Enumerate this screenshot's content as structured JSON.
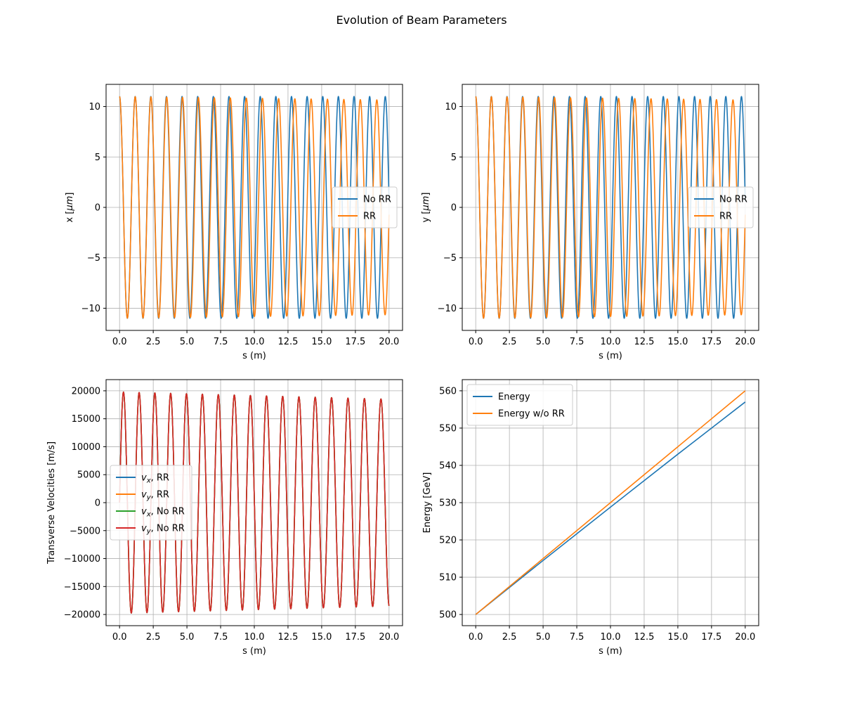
{
  "figure": {
    "title": "Evolution of Beam Parameters"
  },
  "chart_data": [
    {
      "type": "line",
      "xlabel": "s (m)",
      "ylabel": "x [μm]",
      "ylabel_main": "x [",
      "ylabel_unit_sym": "μ",
      "ylabel_unit_rest": "m",
      "ylabel_close": "]",
      "xlim": [
        -1.0,
        21.0
      ],
      "ylim": [
        -12.2,
        12.2
      ],
      "xticks": [
        0.0,
        2.5,
        5.0,
        7.5,
        10.0,
        12.5,
        15.0,
        17.5,
        20.0
      ],
      "xtick_labels": [
        "0.0",
        "2.5",
        "5.0",
        "7.5",
        "10.0",
        "12.5",
        "15.0",
        "17.5",
        "20.0"
      ],
      "yticks": [
        10,
        5,
        0,
        -5,
        -10
      ],
      "ytick_labels": [
        "10",
        "5",
        "0",
        "−5",
        "−10"
      ],
      "grid": true,
      "legend_position": "center-right",
      "series": [
        {
          "name": "No RR",
          "color": "#1f77b4",
          "model": {
            "kind": "osc",
            "amplitude": 11.0,
            "amp_decay": 0.0,
            "period": 1.16,
            "period_drift": 0.0,
            "phase": 0.0,
            "offset": 0.0
          }
        },
        {
          "name": "RR",
          "color": "#ff7f0e",
          "model": {
            "kind": "osc",
            "amplitude": 11.0,
            "amp_decay": 0.35,
            "period": 1.16,
            "period_drift": 0.0015,
            "phase": 0.0,
            "offset": 0.0
          }
        }
      ]
    },
    {
      "type": "line",
      "xlabel": "s (m)",
      "ylabel": "y [μm]",
      "ylabel_main": "y [",
      "ylabel_unit_sym": "μ",
      "ylabel_unit_rest": "m",
      "ylabel_close": "]",
      "xlim": [
        -1.0,
        21.0
      ],
      "ylim": [
        -12.2,
        12.2
      ],
      "xticks": [
        0.0,
        2.5,
        5.0,
        7.5,
        10.0,
        12.5,
        15.0,
        17.5,
        20.0
      ],
      "xtick_labels": [
        "0.0",
        "2.5",
        "5.0",
        "7.5",
        "10.0",
        "12.5",
        "15.0",
        "17.5",
        "20.0"
      ],
      "yticks": [
        10,
        5,
        0,
        -5,
        -10
      ],
      "ytick_labels": [
        "10",
        "5",
        "0",
        "−5",
        "−10"
      ],
      "grid": true,
      "legend_position": "center-right",
      "series": [
        {
          "name": "No RR",
          "color": "#1f77b4",
          "model": {
            "kind": "osc",
            "amplitude": 11.0,
            "amp_decay": 0.0,
            "period": 1.16,
            "period_drift": 0.0,
            "phase": 0.0,
            "offset": 0.0
          }
        },
        {
          "name": "RR",
          "color": "#ff7f0e",
          "model": {
            "kind": "osc",
            "amplitude": 11.0,
            "amp_decay": 0.35,
            "period": 1.16,
            "period_drift": 0.0015,
            "phase": 0.0,
            "offset": 0.0
          }
        }
      ]
    },
    {
      "type": "line",
      "xlabel": "s (m)",
      "ylabel": "Transverse Velocities [m/s]",
      "xlim": [
        -1.0,
        21.0
      ],
      "ylim": [
        -22000,
        22000
      ],
      "xticks": [
        0.0,
        2.5,
        5.0,
        7.5,
        10.0,
        12.5,
        15.0,
        17.5,
        20.0
      ],
      "xtick_labels": [
        "0.0",
        "2.5",
        "5.0",
        "7.5",
        "10.0",
        "12.5",
        "15.0",
        "17.5",
        "20.0"
      ],
      "yticks": [
        20000,
        15000,
        10000,
        5000,
        0,
        -5000,
        -10000,
        -15000,
        -20000
      ],
      "ytick_labels": [
        "20000",
        "15000",
        "10000",
        "5000",
        "0",
        "−5000",
        "−10000",
        "−15000",
        "−20000"
      ],
      "grid": true,
      "legend_position": "center-left",
      "series": [
        {
          "name": "vx, RR",
          "sym": "v",
          "sub": "x",
          "rest": ", RR",
          "color": "#1f77b4",
          "model": {
            "kind": "osc",
            "amplitude": 19800,
            "amp_decay": 1300,
            "period": 1.16,
            "period_drift": 0.0015,
            "phase": -1.5708,
            "offset": 0.0
          }
        },
        {
          "name": "vy, RR",
          "sym": "v",
          "sub": "y",
          "rest": ", RR",
          "color": "#ff7f0e",
          "model": {
            "kind": "osc",
            "amplitude": 19800,
            "amp_decay": 1300,
            "period": 1.16,
            "period_drift": 0.0015,
            "phase": -1.5708,
            "offset": 0.0
          }
        },
        {
          "name": "vx, No RR",
          "sym": "v",
          "sub": "x",
          "rest": ", No RR",
          "color": "#2ca02c",
          "model": {
            "kind": "osc",
            "amplitude": 19800,
            "amp_decay": 1300,
            "period": 1.16,
            "period_drift": 0.0015,
            "phase": -1.5708,
            "offset": 0.0
          }
        },
        {
          "name": "vy, No RR",
          "sym": "v",
          "sub": "y",
          "rest": ", No RR",
          "color": "#d62728",
          "model": {
            "kind": "osc",
            "amplitude": 19800,
            "amp_decay": 1300,
            "period": 1.16,
            "period_drift": 0.0015,
            "phase": -1.5708,
            "offset": 0.0
          }
        }
      ]
    },
    {
      "type": "line",
      "xlabel": "s (m)",
      "ylabel": "Energy [GeV]",
      "xlim": [
        -1.0,
        21.0
      ],
      "ylim": [
        497,
        563
      ],
      "xticks": [
        0.0,
        2.5,
        5.0,
        7.5,
        10.0,
        12.5,
        15.0,
        17.5,
        20.0
      ],
      "xtick_labels": [
        "0.0",
        "2.5",
        "5.0",
        "7.5",
        "10.0",
        "12.5",
        "15.0",
        "17.5",
        "20.0"
      ],
      "yticks": [
        560,
        550,
        540,
        530,
        520,
        510,
        500
      ],
      "ytick_labels": [
        "560",
        "550",
        "540",
        "530",
        "520",
        "510",
        "500"
      ],
      "grid": true,
      "legend_position": "upper-left",
      "series": [
        {
          "name": "Energy",
          "color": "#1f77b4",
          "x": [
            0.0,
            5.0,
            10.0,
            15.0,
            20.0
          ],
          "y": [
            500.0,
            514.5,
            528.8,
            543.0,
            557.0
          ]
        },
        {
          "name": "Energy w/o RR",
          "color": "#ff7f0e",
          "x": [
            0.0,
            5.0,
            10.0,
            15.0,
            20.0
          ],
          "y": [
            500.0,
            515.0,
            530.0,
            545.0,
            560.0
          ]
        }
      ]
    }
  ]
}
